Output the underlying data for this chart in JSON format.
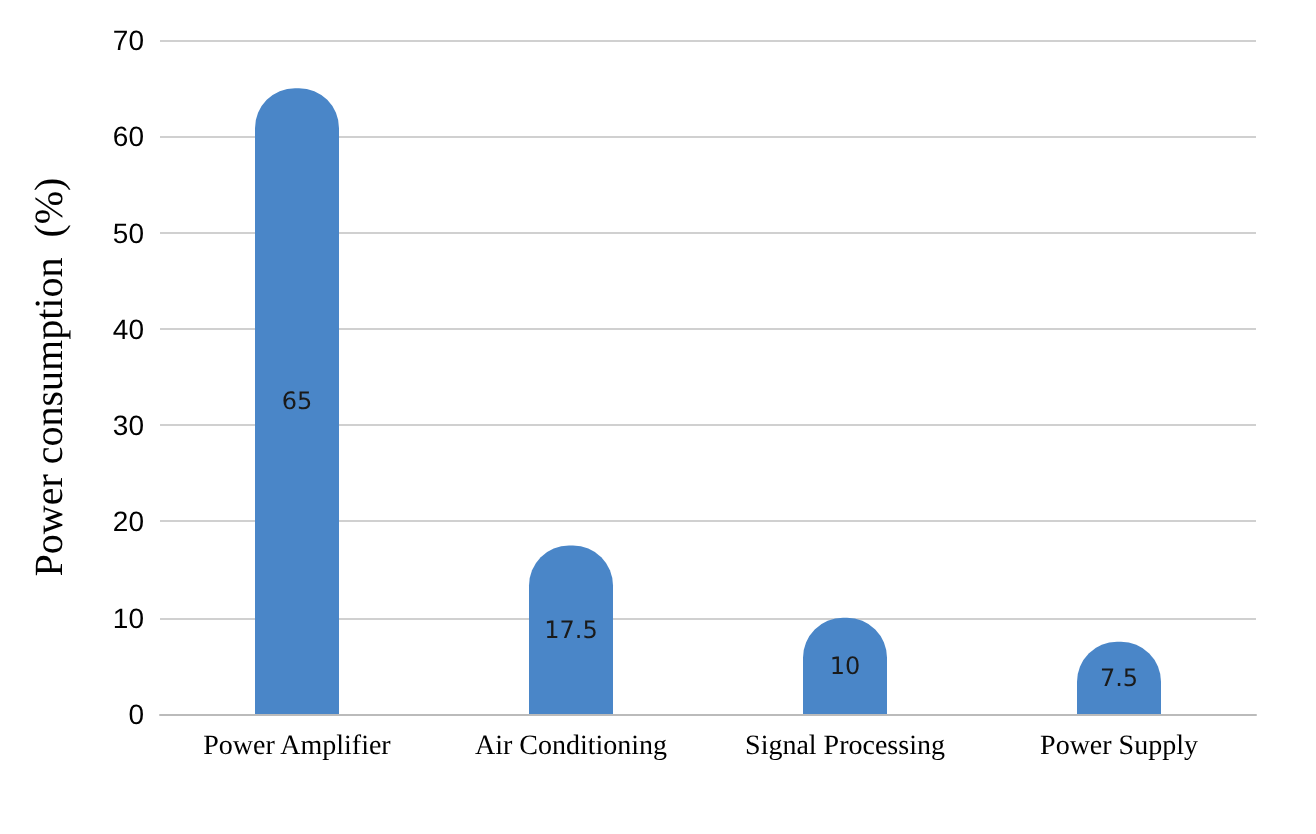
{
  "chart_data": {
    "type": "bar",
    "ylabel": "Power consumption  (%)",
    "categories": [
      "Power Amplifier",
      "Air Conditioning",
      "Signal Processing",
      "Power Supply"
    ],
    "values": [
      65,
      17.5,
      10,
      7.5
    ],
    "color": "#4a86c8",
    "ylim": [
      0,
      70
    ],
    "yticks": [
      0,
      10,
      20,
      30,
      40,
      50,
      60,
      70
    ],
    "grid": "y",
    "data_labels": true
  }
}
